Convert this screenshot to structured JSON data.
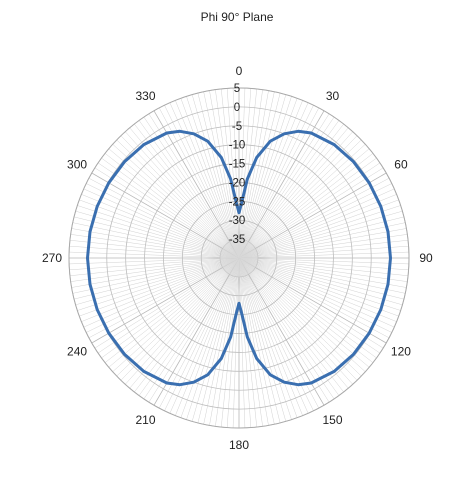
{
  "chart_data": {
    "type": "radar",
    "title": "Phi 90° Plane",
    "angle_labels": [
      "0",
      "30",
      "60",
      "90",
      "120",
      "150",
      "180",
      "210",
      "240",
      "270",
      "300",
      "330"
    ],
    "angle_label_values": [
      0,
      30,
      60,
      90,
      120,
      150,
      180,
      210,
      240,
      270,
      300,
      330
    ],
    "radial_ticks": [
      "5",
      "0",
      "-5",
      "-10",
      "-15",
      "-20",
      "-25",
      "-30",
      "-35"
    ],
    "radial_tick_values": [
      5,
      0,
      -5,
      -10,
      -15,
      -20,
      -25,
      -30,
      -35
    ],
    "rlim": [
      -40,
      5
    ],
    "grid": true,
    "angular_gridline_step_deg": 2,
    "series": [
      {
        "color": "#3a6fb0",
        "angles": [
          0,
          3,
          6,
          10,
          15,
          20,
          25,
          30,
          40,
          50,
          60,
          70,
          80,
          90,
          100,
          110,
          120,
          130,
          140,
          150,
          155,
          160,
          165,
          170,
          174,
          177,
          180,
          183,
          186,
          190,
          195,
          200,
          205,
          210,
          220,
          230,
          240,
          250,
          260,
          270,
          280,
          290,
          300,
          310,
          320,
          330,
          335,
          340,
          345,
          350,
          354,
          357
        ],
        "values": [
          -28,
          -25,
          -19,
          -13,
          -8,
          -5,
          -3,
          -1.8,
          -0.8,
          -0.4,
          -0.2,
          -0.05,
          0.05,
          0.1,
          0.05,
          -0.05,
          -0.2,
          -0.4,
          -0.8,
          -1.8,
          -3,
          -5,
          -8,
          -13,
          -19,
          -25,
          -28,
          -25,
          -19,
          -13,
          -8,
          -5,
          -3,
          -1.8,
          -0.8,
          -0.4,
          -0.2,
          -0.05,
          0.05,
          0.1,
          0.05,
          -0.05,
          -0.2,
          -0.4,
          -0.8,
          -1.8,
          -3,
          -5,
          -8,
          -13,
          -19,
          -25
        ]
      }
    ]
  }
}
